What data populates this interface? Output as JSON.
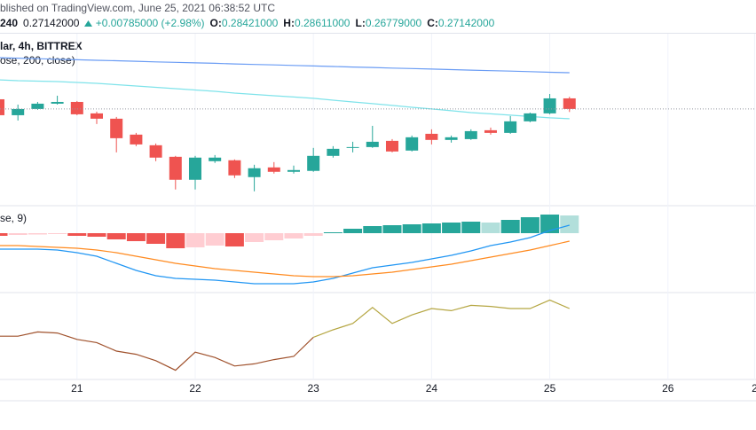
{
  "chart_data": {
    "type": "candlestick",
    "header": {
      "source": "blished on TradingView.com, June 25, 2021 06:38:52 UTC",
      "interval": "240",
      "last": "0.27142000",
      "change": "+0.00785000 (+2.98%)",
      "ohlc": [
        {
          "label": "O:",
          "value": "0.28421000"
        },
        {
          "label": "H:",
          "value": "0.28611000"
        },
        {
          "label": "L:",
          "value": "0.26779000"
        },
        {
          "label": "C:",
          "value": "0.27142000"
        }
      ]
    },
    "symbol_legend": "lar, 4h, BITTREX",
    "ma_legend": "ose, 200, close)",
    "macd_legend": "se, 9)",
    "x": [
      0,
      1,
      2,
      3,
      4,
      5,
      6,
      7,
      8,
      9,
      10,
      11,
      12,
      13,
      14,
      15,
      16,
      17,
      18,
      19,
      20,
      21,
      22,
      23,
      24,
      25,
      26,
      27,
      28,
      29
    ],
    "xlim": [
      0.09,
      38.47
    ],
    "xticks": [
      {
        "value": 4,
        "label": "21"
      },
      {
        "value": 10,
        "label": "22"
      },
      {
        "value": 16,
        "label": "23"
      },
      {
        "value": 22,
        "label": "24"
      },
      {
        "value": 28,
        "label": "25"
      },
      {
        "value": 34,
        "label": "26"
      },
      {
        "value": 38.4,
        "label": "2"
      }
    ],
    "ylim": [
      0.157,
      0.36
    ],
    "up_color": "#26a69a",
    "down_color": "#ef5350",
    "open": [
      0.2831,
      0.2639,
      0.2714,
      0.2778,
      0.2799,
      0.2661,
      0.2597,
      0.2405,
      0.2277,
      0.2138,
      0.1861,
      0.2085,
      0.2096,
      0.1893,
      0.201,
      0.1957,
      0.1968,
      0.2149,
      0.2245,
      0.2255,
      0.233,
      0.2213,
      0.2415,
      0.2341,
      0.2351,
      0.2458,
      0.2426,
      0.2565,
      0.2661,
      0.2842
    ],
    "high": [
      0.2874,
      0.2767,
      0.2799,
      0.2874,
      0.281,
      0.2682,
      0.2618,
      0.2426,
      0.2298,
      0.2149,
      0.2149,
      0.2159,
      0.2106,
      0.2042,
      0.2074,
      0.2032,
      0.2245,
      0.2266,
      0.2319,
      0.2511,
      0.2351,
      0.2394,
      0.2469,
      0.2394,
      0.2469,
      0.249,
      0.2629,
      0.2671,
      0.2895,
      0.2861
    ],
    "low": [
      0.2618,
      0.2575,
      0.2703,
      0.2767,
      0.2639,
      0.2533,
      0.2191,
      0.2266,
      0.2085,
      0.1744,
      0.1744,
      0.2064,
      0.1882,
      0.1722,
      0.1936,
      0.1936,
      0.1957,
      0.2128,
      0.2191,
      0.2245,
      0.2191,
      0.2202,
      0.2287,
      0.2309,
      0.2341,
      0.2405,
      0.2415,
      0.2554,
      0.265,
      0.2678
    ],
    "close": [
      0.2639,
      0.2714,
      0.2778,
      0.2799,
      0.265,
      0.2597,
      0.2362,
      0.2287,
      0.2128,
      0.1861,
      0.2128,
      0.2128,
      0.1914,
      0.2,
      0.1957,
      0.1978,
      0.2149,
      0.2234,
      0.2255,
      0.2319,
      0.2202,
      0.2373,
      0.2341,
      0.2373,
      0.2447,
      0.2426,
      0.2565,
      0.2661,
      0.2842,
      0.2714
    ],
    "last_price_color": "#9598a1",
    "moving_averages": [
      {
        "color": "#6a9cf4",
        "values": [
          0.3332,
          0.3326,
          0.332,
          0.3314,
          0.3307,
          0.3301,
          0.3295,
          0.3289,
          0.3282,
          0.3276,
          0.327,
          0.3264,
          0.3257,
          0.3251,
          0.3245,
          0.3239,
          0.3232,
          0.3226,
          0.322,
          0.3214,
          0.3207,
          0.3201,
          0.3195,
          0.3189,
          0.3182,
          0.3176,
          0.317,
          0.3164,
          0.3157,
          0.3151
        ]
      },
      {
        "color": "#7fe3ea",
        "values": [
          0.3066,
          0.3055,
          0.305,
          0.3044,
          0.3034,
          0.3023,
          0.3007,
          0.2991,
          0.2975,
          0.2959,
          0.2943,
          0.2927,
          0.2906,
          0.289,
          0.2874,
          0.2858,
          0.2842,
          0.282,
          0.2799,
          0.2778,
          0.2757,
          0.2735,
          0.2714,
          0.2693,
          0.2671,
          0.2655,
          0.2639,
          0.2623,
          0.2607,
          0.2597
        ]
      }
    ],
    "macd": {
      "ylim": [
        -0.0134,
        0.0046
      ],
      "histogram": {
        "colors": {
          "up": "#26a69a",
          "up_fading": "#b2dfdb",
          "down": "#ef5350",
          "down_fading": "#ffcdd2"
        },
        "values": [
          -0.0006,
          -0.0004,
          -0.0003,
          -0.0002,
          -0.0006,
          -0.0008,
          -0.0014,
          -0.0018,
          -0.0024,
          -0.0034,
          -0.0032,
          -0.0028,
          -0.003,
          -0.002,
          -0.0016,
          -0.0012,
          -0.0006,
          0.0002,
          0.001,
          0.0016,
          0.0018,
          0.002,
          0.0022,
          0.0024,
          0.0026,
          0.0024,
          0.003,
          0.0036,
          0.0042,
          0.004
        ]
      },
      "series": [
        {
          "color": "#2196f3",
          "values": [
            -0.0036,
            -0.0036,
            -0.0036,
            -0.0038,
            -0.0044,
            -0.0052,
            -0.0068,
            -0.0084,
            -0.0096,
            -0.0102,
            -0.0104,
            -0.0106,
            -0.011,
            -0.0114,
            -0.0114,
            -0.0114,
            -0.011,
            -0.0102,
            -0.009,
            -0.0078,
            -0.0072,
            -0.0066,
            -0.0058,
            -0.005,
            -0.004,
            -0.0028,
            -0.002,
            -0.001,
            0.0006,
            0.0018
          ]
        },
        {
          "color": "#ff8a1f",
          "values": [
            -0.0028,
            -0.0028,
            -0.003,
            -0.0032,
            -0.0034,
            -0.0038,
            -0.0044,
            -0.0052,
            -0.006,
            -0.0068,
            -0.0074,
            -0.008,
            -0.0084,
            -0.0088,
            -0.0092,
            -0.0096,
            -0.0098,
            -0.0098,
            -0.0096,
            -0.0092,
            -0.0088,
            -0.0082,
            -0.0076,
            -0.007,
            -0.0062,
            -0.0054,
            -0.0046,
            -0.0038,
            -0.0028,
            -0.0018
          ]
        }
      ]
    },
    "oscillator": {
      "ylim": [
        18.3,
        100
      ],
      "series": [
        {
          "color": "#a0522d",
          "values": [
            59,
            59,
            63,
            62,
            56,
            53,
            45,
            42,
            36,
            27,
            44,
            39,
            31,
            33,
            37,
            40,
            58,
            null,
            null,
            null,
            null,
            null,
            null,
            null,
            null,
            null,
            null,
            null,
            null,
            null
          ]
        },
        {
          "color": "#b5a642",
          "values": [
            null,
            null,
            null,
            null,
            null,
            null,
            null,
            null,
            null,
            null,
            null,
            null,
            null,
            null,
            null,
            null,
            58,
            65,
            71,
            86,
            71,
            79,
            85,
            83,
            88,
            87,
            85,
            85,
            93,
            85
          ]
        }
      ]
    }
  }
}
